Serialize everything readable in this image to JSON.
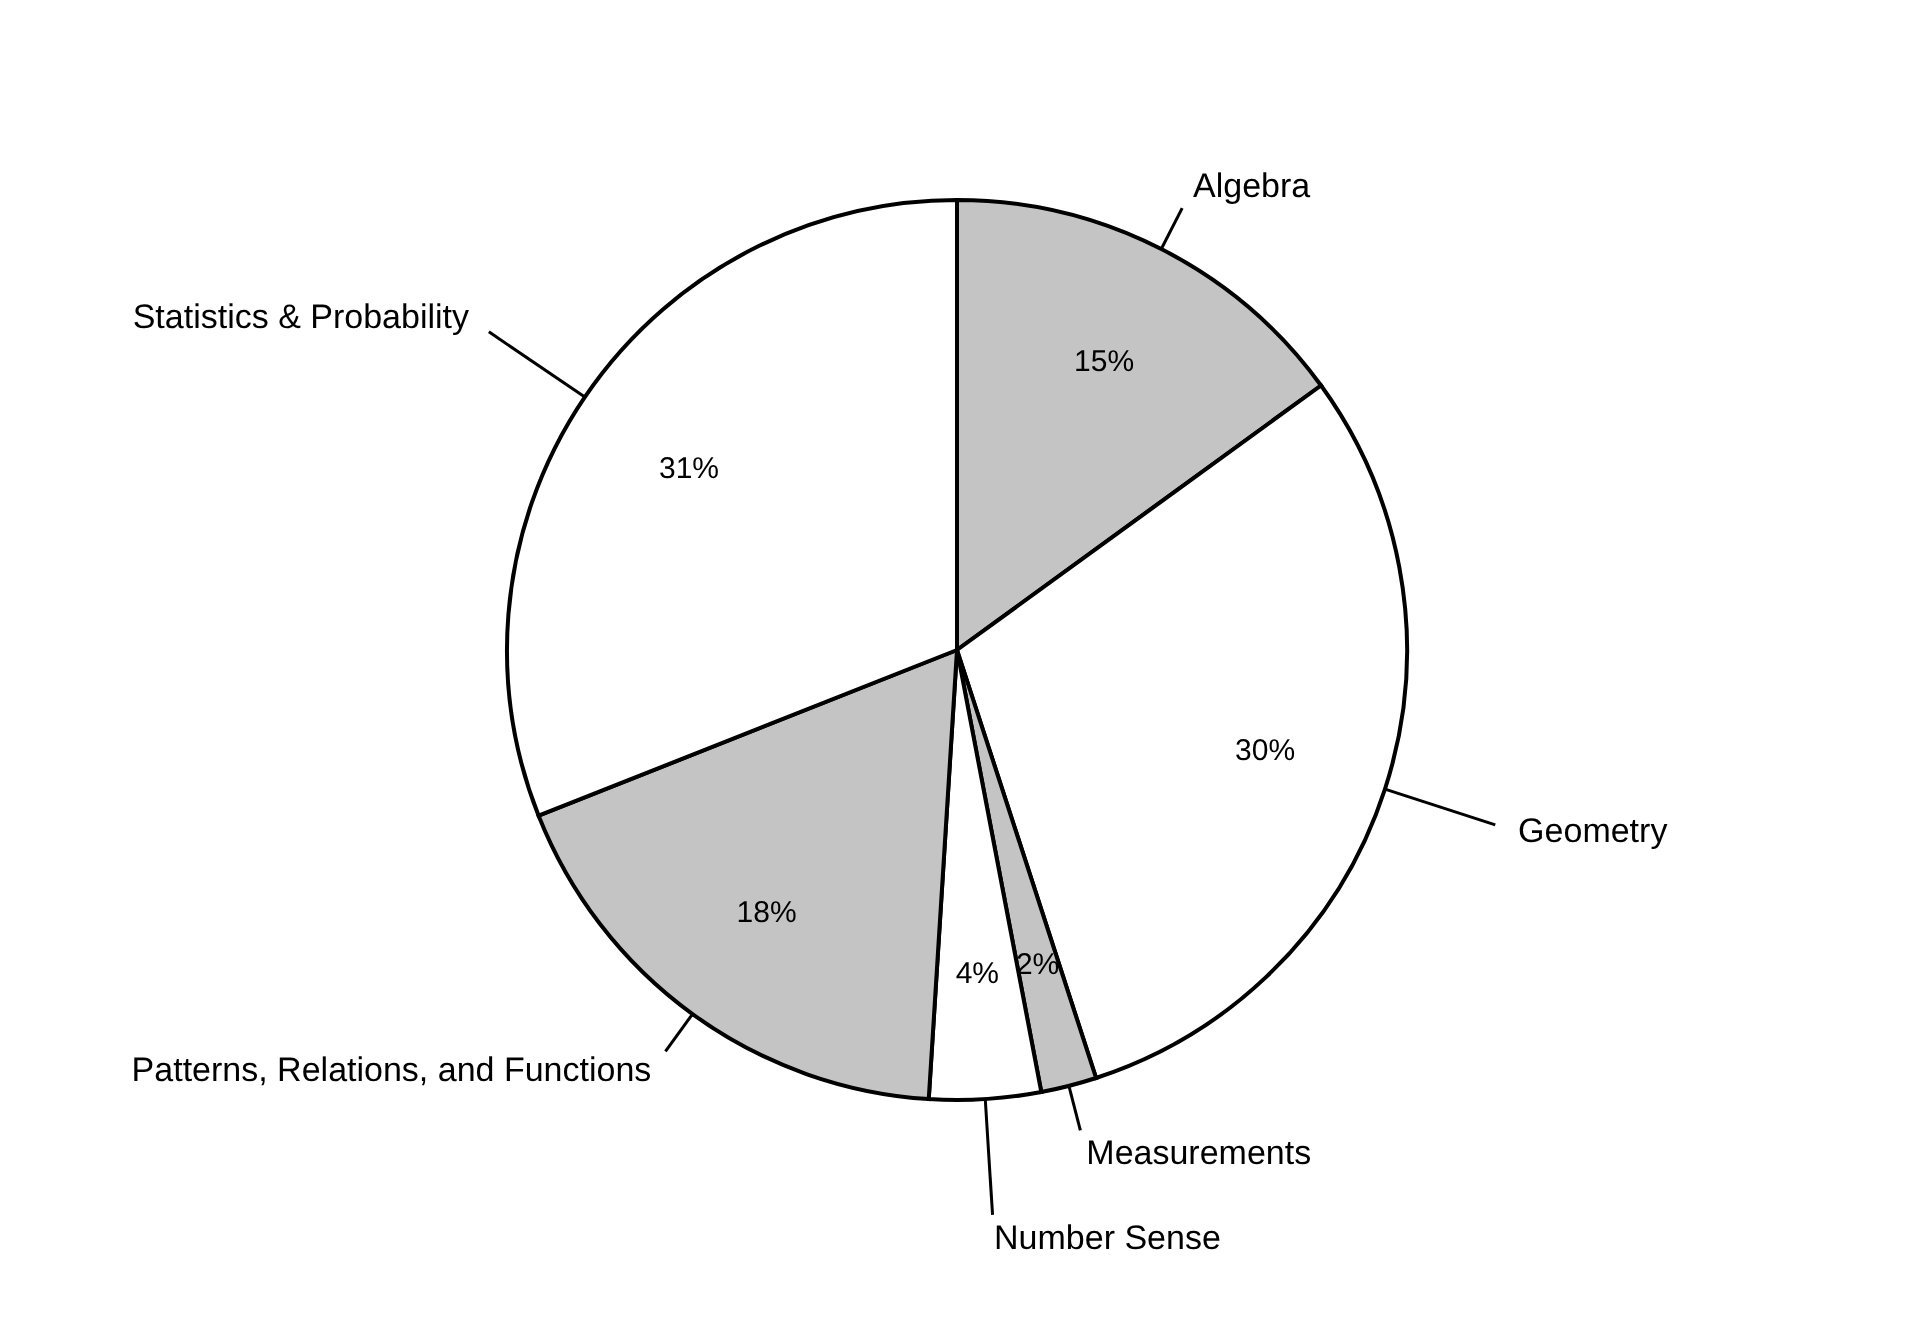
{
  "chart_data": {
    "type": "pie",
    "categories": [
      "Algebra",
      "Geometry",
      "Measurements",
      "Number Sense",
      "Patterns, Relations, and Functions",
      "Statistics & Probability"
    ],
    "values": [
      15,
      30,
      2,
      4,
      18,
      31
    ],
    "colors": [
      "#c4c4c4",
      "#ffffff",
      "#c4c4c4",
      "#ffffff",
      "#c4c4c4",
      "#ffffff"
    ],
    "value_labels": [
      "15%",
      "30%",
      "2%",
      "4%",
      "18%",
      "31%"
    ]
  }
}
